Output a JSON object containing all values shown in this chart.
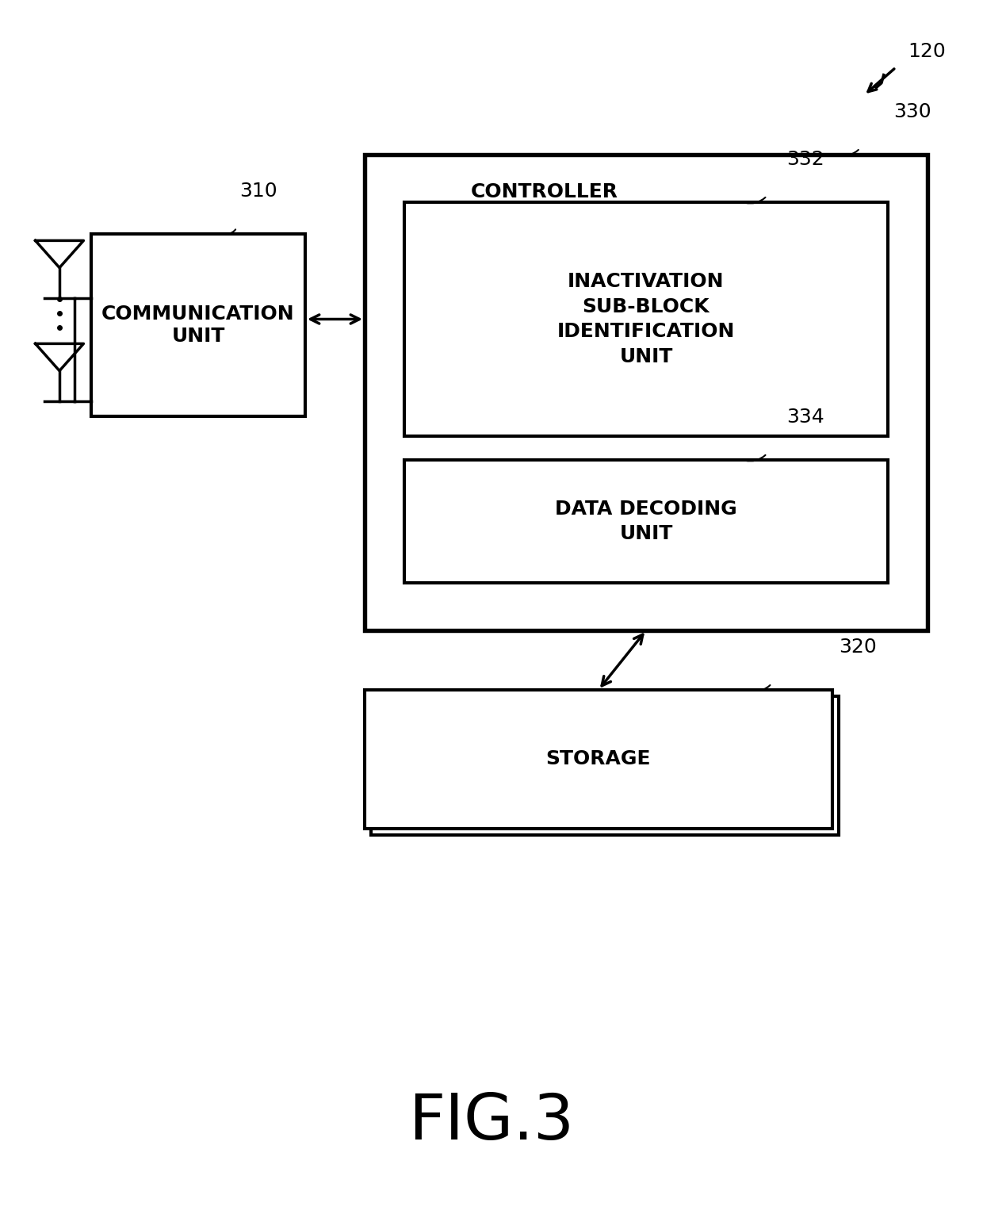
{
  "fig_label": "FIG.3",
  "fig_label_fontsize": 58,
  "background_color": "#ffffff",
  "label_120": "120",
  "label_310": "310",
  "label_330": "330",
  "label_332": "332",
  "label_334": "334",
  "label_320": "320",
  "comm_unit_text": "COMMUNICATION\nUNIT",
  "controller_text": "CONTROLLER",
  "inact_text": "INACTIVATION\nSUB-BLOCK\nIDENTIFICATION\nUNIT",
  "data_dec_text": "DATA DECODING\nUNIT",
  "storage_text": "STORAGE",
  "text_fontsize": 18,
  "label_fontsize": 18,
  "linewidth": 3.0,
  "arrow_linewidth": 2.5
}
